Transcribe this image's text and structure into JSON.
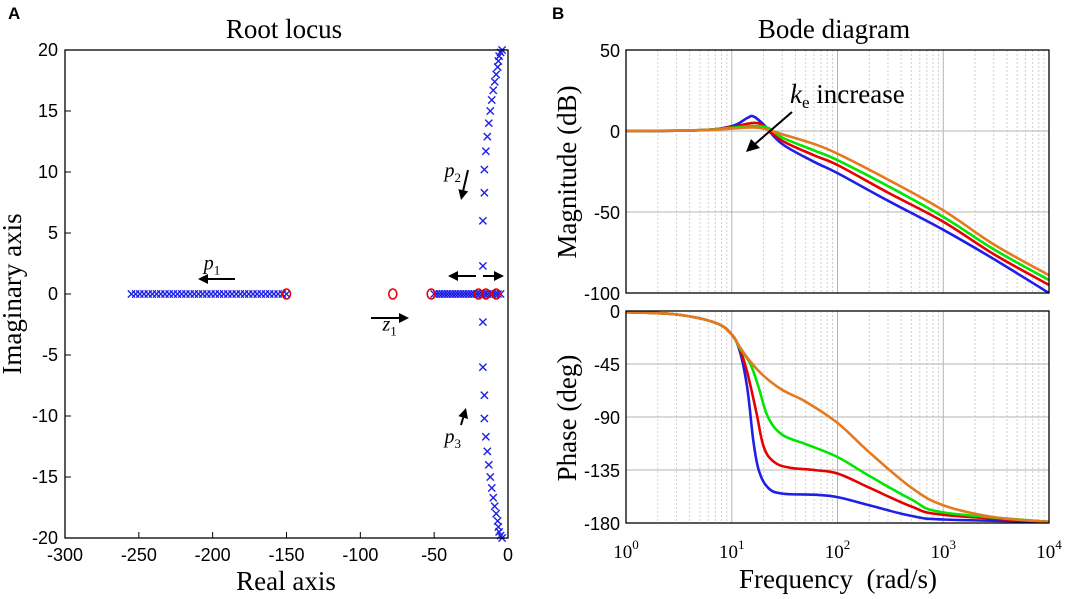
{
  "panels": {
    "a": {
      "letter": "A"
    },
    "b": {
      "letter": "B"
    }
  },
  "colors": {
    "blue": "#1f1fe6",
    "red": "#e60000",
    "green": "#00e600",
    "orange": "#e6781e",
    "axis": "#000000",
    "grid": "#c8c8c8"
  },
  "chart_data": [
    {
      "type": "scatter",
      "title": "Root locus",
      "xlabel": "Real axis",
      "ylabel": "Imaginary axis",
      "xlim": [
        -300,
        0
      ],
      "ylim": [
        -20,
        20
      ],
      "xticks": [
        -300,
        -250,
        -200,
        -150,
        -100,
        -50,
        0
      ],
      "yticks": [
        -20,
        -15,
        -10,
        -5,
        0,
        5,
        10,
        15,
        20
      ],
      "poles_p1_real_axis": {
        "from": -255,
        "to": -150,
        "count": 38
      },
      "poles_near_origin_real_axis": {
        "from": -50,
        "to": -5,
        "count": 26
      },
      "poles_p2_p3_branch": [
        [
          -17,
          2.3
        ],
        [
          -17,
          6
        ],
        [
          -16,
          8.3
        ],
        [
          -16,
          10.2
        ],
        [
          -15,
          11.7
        ],
        [
          -14,
          12.9
        ],
        [
          -13,
          14
        ],
        [
          -12,
          15
        ],
        [
          -11,
          15.9
        ],
        [
          -10,
          16.7
        ],
        [
          -9,
          17.4
        ],
        [
          -8,
          18
        ],
        [
          -7,
          18.6
        ],
        [
          -6.5,
          19.1
        ],
        [
          -6,
          19.5
        ],
        [
          -5,
          19.8
        ],
        [
          -4,
          20
        ]
      ],
      "zeros": [
        [
          -150,
          0
        ],
        [
          -78,
          0
        ],
        [
          -52,
          0
        ],
        [
          -20,
          0
        ],
        [
          -15,
          0
        ],
        [
          -8,
          0
        ]
      ],
      "annotations": [
        {
          "text": "p",
          "sub": "1",
          "x": -206,
          "y": 2.0
        },
        {
          "text": "p",
          "sub": "2",
          "x": -43,
          "y": 9.6
        },
        {
          "text": "p",
          "sub": "3",
          "x": -43,
          "y": -12.2
        },
        {
          "text": "z",
          "sub": "1",
          "x": -85,
          "y": -3.0
        }
      ]
    },
    {
      "type": "line",
      "title": "Bode diagram",
      "xlabel": "Frequency  (rad/s)",
      "xscale": "log",
      "xlim": [
        1,
        10000
      ],
      "xticks": [
        {
          "base": "10",
          "exp": "0"
        },
        {
          "base": "10",
          "exp": "1"
        },
        {
          "base": "10",
          "exp": "2"
        },
        {
          "base": "10",
          "exp": "3"
        },
        {
          "base": "10",
          "exp": "4"
        }
      ],
      "magnitude": {
        "ylabel": "Magnitude (dB)",
        "ylim": [
          -100,
          50
        ],
        "yticks": [
          -100,
          -50,
          0,
          50
        ],
        "annotation": {
          "k": "k",
          "sub": "e",
          "rest": " increase"
        },
        "series": [
          {
            "name": "blue",
            "points": [
              [
                1,
                0
              ],
              [
                5,
                0.5
              ],
              [
                10,
                3
              ],
              [
                14,
                8
              ],
              [
                16,
                9
              ],
              [
                20,
                4
              ],
              [
                30,
                -8
              ],
              [
                60,
                -19
              ],
              [
                100,
                -26
              ],
              [
                300,
                -43
              ],
              [
                1000,
                -61
              ],
              [
                3000,
                -79
              ],
              [
                10000,
                -100
              ]
            ]
          },
          {
            "name": "red",
            "points": [
              [
                1,
                0
              ],
              [
                5,
                0.5
              ],
              [
                10,
                2.5
              ],
              [
                16,
                5
              ],
              [
                20,
                3
              ],
              [
                30,
                -6
              ],
              [
                60,
                -15
              ],
              [
                100,
                -21
              ],
              [
                300,
                -38
              ],
              [
                1000,
                -56
              ],
              [
                3000,
                -76
              ],
              [
                10000,
                -95
              ]
            ]
          },
          {
            "name": "green",
            "points": [
              [
                1,
                0
              ],
              [
                5,
                0.5
              ],
              [
                10,
                2
              ],
              [
                16,
                3
              ],
              [
                22,
                2
              ],
              [
                30,
                -4
              ],
              [
                60,
                -12
              ],
              [
                100,
                -18
              ],
              [
                300,
                -34
              ],
              [
                1000,
                -53
              ],
              [
                3000,
                -73
              ],
              [
                10000,
                -92
              ]
            ]
          },
          {
            "name": "orange",
            "points": [
              [
                1,
                0
              ],
              [
                5,
                0.5
              ],
              [
                10,
                1.5
              ],
              [
                18,
                2
              ],
              [
                30,
                -2
              ],
              [
                60,
                -8
              ],
              [
                100,
                -14
              ],
              [
                300,
                -30
              ],
              [
                1000,
                -49
              ],
              [
                3000,
                -70
              ],
              [
                10000,
                -89
              ]
            ]
          }
        ]
      },
      "phase": {
        "ylabel": "Phase (deg)",
        "ylim": [
          -180,
          0
        ],
        "yticks": [
          0,
          -45,
          -90,
          -135,
          -180
        ],
        "series": [
          {
            "name": "blue",
            "points": [
              [
                1,
                -1
              ],
              [
                3,
                -3
              ],
              [
                7,
                -10
              ],
              [
                10,
                -20
              ],
              [
                12,
                -35
              ],
              [
                14,
                -65
              ],
              [
                16,
                -110
              ],
              [
                18,
                -135
              ],
              [
                22,
                -150
              ],
              [
                30,
                -155
              ],
              [
                60,
                -156
              ],
              [
                100,
                -158
              ],
              [
                200,
                -165
              ],
              [
                500,
                -174
              ],
              [
                1000,
                -177
              ],
              [
                10000,
                -179
              ]
            ]
          },
          {
            "name": "red",
            "points": [
              [
                1,
                -1
              ],
              [
                3,
                -3
              ],
              [
                7,
                -10
              ],
              [
                10,
                -20
              ],
              [
                12,
                -33
              ],
              [
                14,
                -52
              ],
              [
                17,
                -85
              ],
              [
                20,
                -115
              ],
              [
                25,
                -128
              ],
              [
                35,
                -133
              ],
              [
                60,
                -135
              ],
              [
                100,
                -138
              ],
              [
                200,
                -150
              ],
              [
                500,
                -166
              ],
              [
                1000,
                -173
              ],
              [
                10000,
                -179
              ]
            ]
          },
          {
            "name": "green",
            "points": [
              [
                1,
                -1
              ],
              [
                3,
                -3
              ],
              [
                7,
                -10
              ],
              [
                10,
                -20
              ],
              [
                12,
                -32
              ],
              [
                15,
                -45
              ],
              [
                18,
                -65
              ],
              [
                22,
                -90
              ],
              [
                30,
                -105
              ],
              [
                50,
                -113
              ],
              [
                100,
                -124
              ],
              [
                200,
                -140
              ],
              [
                500,
                -160
              ],
              [
                1000,
                -171
              ],
              [
                10000,
                -179
              ]
            ]
          },
          {
            "name": "orange",
            "points": [
              [
                1,
                -1
              ],
              [
                3,
                -3
              ],
              [
                7,
                -10
              ],
              [
                10,
                -20
              ],
              [
                12,
                -31
              ],
              [
                15,
                -43
              ],
              [
                20,
                -55
              ],
              [
                30,
                -67
              ],
              [
                50,
                -77
              ],
              [
                100,
                -95
              ],
              [
                200,
                -120
              ],
              [
                500,
                -150
              ],
              [
                1000,
                -165
              ],
              [
                3000,
                -175
              ],
              [
                10000,
                -179
              ]
            ]
          }
        ]
      }
    }
  ]
}
